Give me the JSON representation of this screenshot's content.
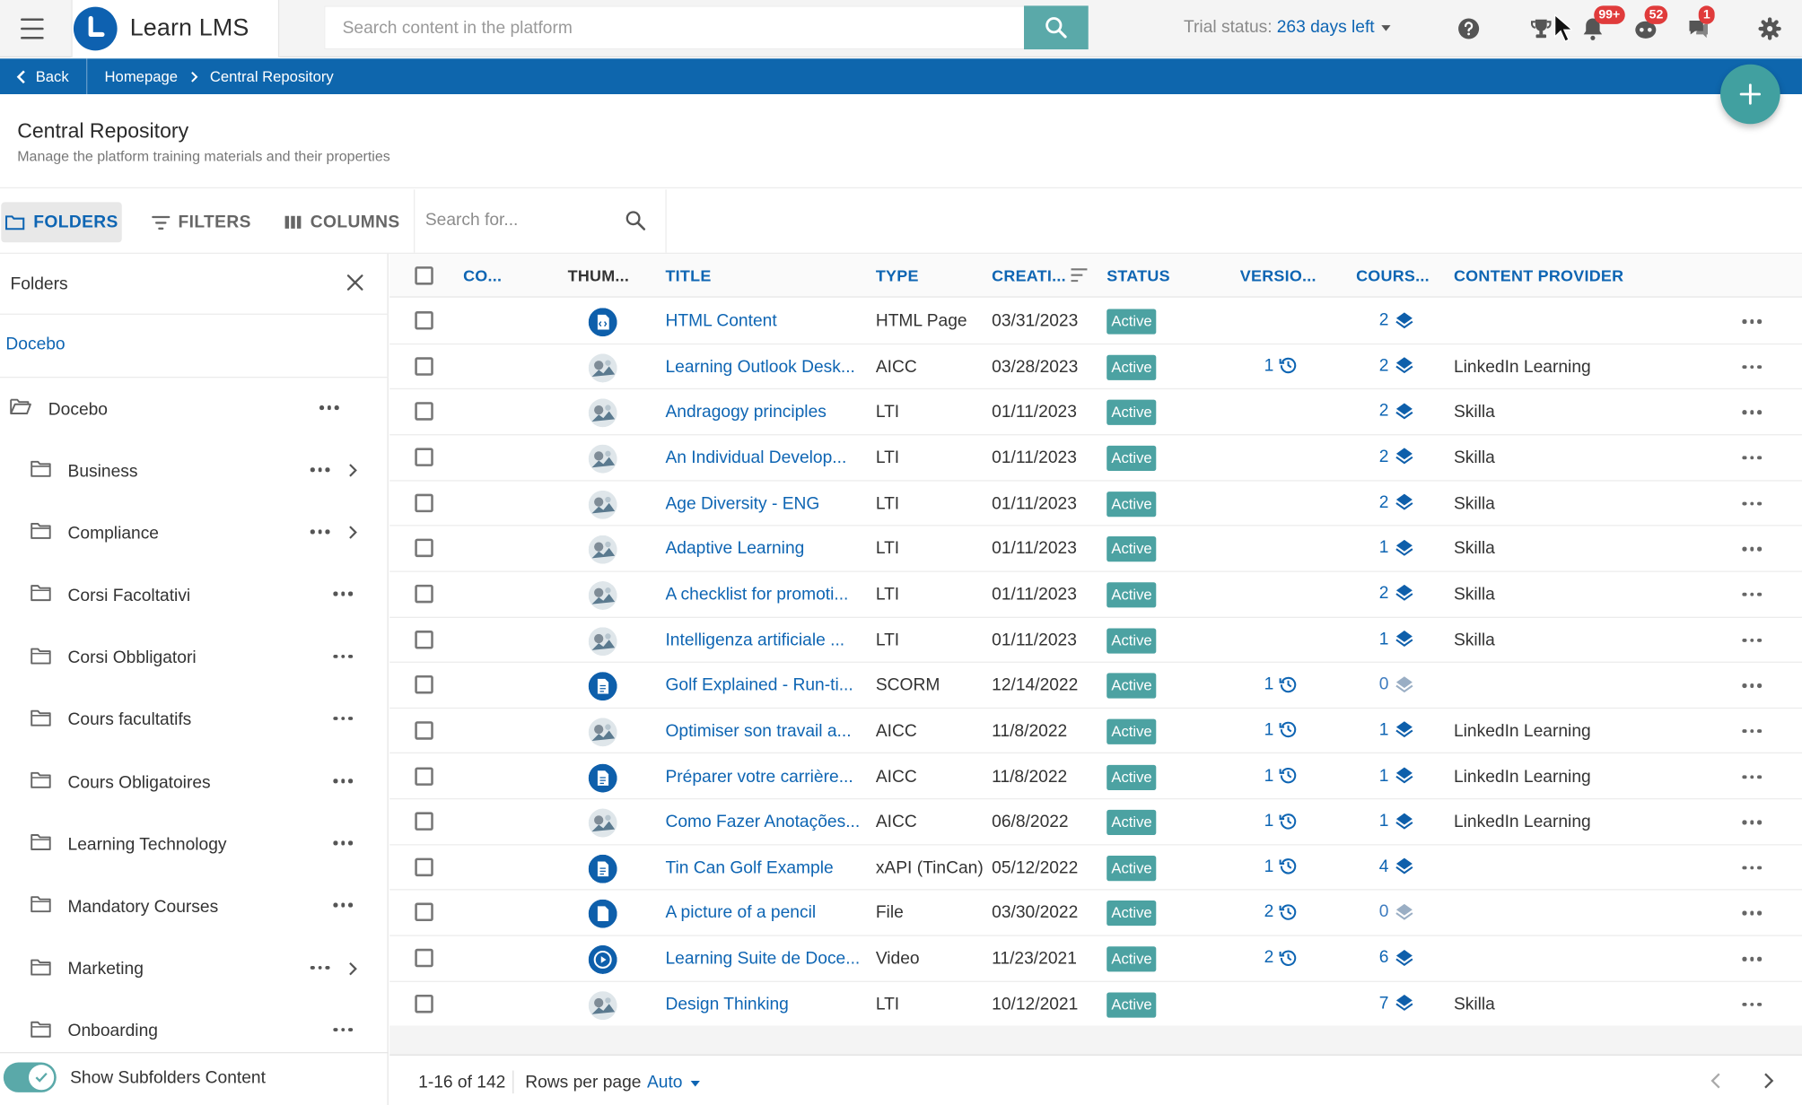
{
  "app": {
    "name": "Learn LMS",
    "brand_color": "#0e61b0",
    "accent_color": "#5aa9a9"
  },
  "search": {
    "placeholder": "Search content in the platform"
  },
  "trial": {
    "label": "Trial status:",
    "value": "263 days left"
  },
  "topbar_icons": [
    {
      "icon": "help-icon"
    },
    {
      "icon": "trophy-icon"
    },
    {
      "icon": "bell-icon",
      "badge": "99+"
    },
    {
      "icon": "chat-bot-icon",
      "badge": "52"
    },
    {
      "icon": "messages-icon",
      "badge": "1"
    },
    {
      "icon": "gear-icon"
    }
  ],
  "breadcrumb": {
    "back": "Back",
    "items": [
      "Homepage",
      "Central Repository"
    ]
  },
  "page": {
    "title": "Central Repository",
    "subtitle": "Manage the platform training materials and their properties"
  },
  "toolbar": {
    "folders": "FOLDERS",
    "filters": "FILTERS",
    "columns": "COLUMNS",
    "search_placeholder": "Search for..."
  },
  "sidebar": {
    "title": "Folders",
    "root": "Docebo",
    "tree_root": "Docebo",
    "folders": [
      {
        "label": "Business",
        "has_children": true
      },
      {
        "label": "Compliance",
        "has_children": true
      },
      {
        "label": "Corsi Facoltativi",
        "has_children": false
      },
      {
        "label": "Corsi Obbligatori",
        "has_children": false
      },
      {
        "label": "Cours facultatifs",
        "has_children": false
      },
      {
        "label": "Cours Obligatoires",
        "has_children": false
      },
      {
        "label": "Learning Technology",
        "has_children": false
      },
      {
        "label": "Mandatory Courses",
        "has_children": false
      },
      {
        "label": "Marketing",
        "has_children": true
      },
      {
        "label": "Onboarding",
        "has_children": false
      }
    ],
    "subfolders_label": "Show Subfolders Content",
    "subfolders_on": true
  },
  "table": {
    "columns": [
      "CO...",
      "THUM...",
      "TITLE",
      "TYPE",
      "CREATI...",
      "STATUS",
      "VERSIO...",
      "COURS...",
      "CONTENT PROVIDER"
    ],
    "rows": [
      {
        "title": "HTML Content",
        "type": "HTML Page",
        "created": "03/31/2023",
        "status": "Active",
        "versions": "",
        "courses": "2",
        "provider": "",
        "thumb": "html-thumb"
      },
      {
        "title": "Learning Outlook Desk...",
        "type": "AICC",
        "created": "03/28/2023",
        "status": "Active",
        "versions": "1",
        "courses": "2",
        "provider": "LinkedIn Learning",
        "thumb": "photo-thumb"
      },
      {
        "title": "Andragogy principles",
        "type": "LTI",
        "created": "01/11/2023",
        "status": "Active",
        "versions": "",
        "courses": "2",
        "provider": "Skilla",
        "thumb": "photo-thumb"
      },
      {
        "title": "An Individual Develop...",
        "type": "LTI",
        "created": "01/11/2023",
        "status": "Active",
        "versions": "",
        "courses": "2",
        "provider": "Skilla",
        "thumb": "photo-thumb"
      },
      {
        "title": "Age Diversity - ENG",
        "type": "LTI",
        "created": "01/11/2023",
        "status": "Active",
        "versions": "",
        "courses": "2",
        "provider": "Skilla",
        "thumb": "photo-thumb"
      },
      {
        "title": "Adaptive Learning",
        "type": "LTI",
        "created": "01/11/2023",
        "status": "Active",
        "versions": "",
        "courses": "1",
        "provider": "Skilla",
        "thumb": "photo-thumb"
      },
      {
        "title": "A checklist for promoti...",
        "type": "LTI",
        "created": "01/11/2023",
        "status": "Active",
        "versions": "",
        "courses": "2",
        "provider": "Skilla",
        "thumb": "photo-thumb"
      },
      {
        "title": "Intelligenza artificiale ...",
        "type": "LTI",
        "created": "01/11/2023",
        "status": "Active",
        "versions": "",
        "courses": "1",
        "provider": "Skilla",
        "thumb": "photo-thumb"
      },
      {
        "title": "Golf Explained - Run-ti...",
        "type": "SCORM",
        "created": "12/14/2022",
        "status": "Active",
        "versions": "1",
        "courses": "0",
        "provider": "",
        "thumb": "doc-thumb"
      },
      {
        "title": "Optimiser son travail a...",
        "type": "AICC",
        "created": "11/8/2022",
        "status": "Active",
        "versions": "1",
        "courses": "1",
        "provider": "LinkedIn Learning",
        "thumb": "photo-thumb"
      },
      {
        "title": "Préparer votre carrière...",
        "type": "AICC",
        "created": "11/8/2022",
        "status": "Active",
        "versions": "1",
        "courses": "1",
        "provider": "LinkedIn Learning",
        "thumb": "doc-thumb"
      },
      {
        "title": "Como Fazer Anotações...",
        "type": "AICC",
        "created": "06/8/2022",
        "status": "Active",
        "versions": "1",
        "courses": "1",
        "provider": "LinkedIn Learning",
        "thumb": "photo-thumb"
      },
      {
        "title": "Tin Can Golf Example",
        "type": "xAPI (TinCan)",
        "created": "05/12/2022",
        "status": "Active",
        "versions": "1",
        "courses": "4",
        "provider": "",
        "thumb": "doc-thumb"
      },
      {
        "title": "A picture of a pencil",
        "type": "File",
        "created": "03/30/2022",
        "status": "Active",
        "versions": "2",
        "courses": "0",
        "provider": "",
        "thumb": "file-thumb"
      },
      {
        "title": "Learning Suite de Doce...",
        "type": "Video",
        "created": "11/23/2021",
        "status": "Active",
        "versions": "2",
        "courses": "6",
        "provider": "",
        "thumb": "video-thumb"
      },
      {
        "title": "Design Thinking",
        "type": "LTI",
        "created": "10/12/2021",
        "status": "Active",
        "versions": "",
        "courses": "7",
        "provider": "Skilla",
        "thumb": "photo-thumb"
      }
    ]
  },
  "pagination": {
    "range": "1-16 of 142",
    "rows_per_page_label": "Rows per page",
    "rows_per_page_value": "Auto"
  }
}
